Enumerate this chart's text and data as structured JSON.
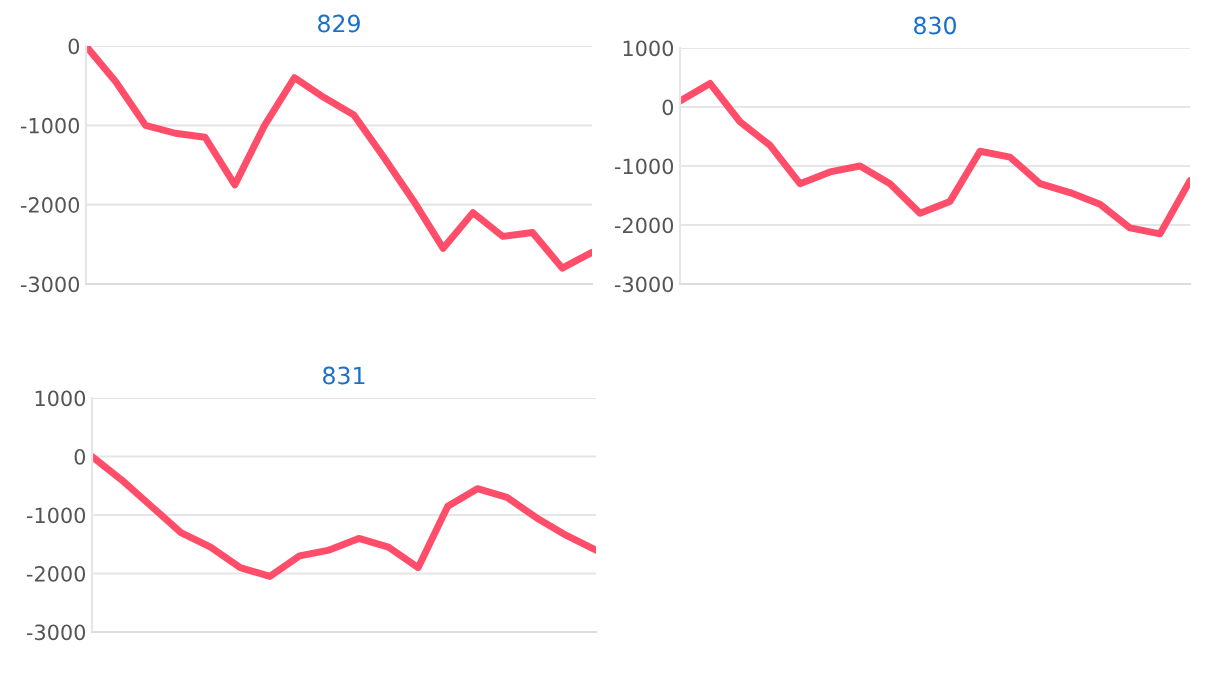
{
  "chart_data": [
    {
      "type": "line",
      "title": "829",
      "categories": [
        null,
        null,
        null,
        null,
        null,
        null,
        null,
        null,
        null,
        null,
        null,
        null,
        null,
        null,
        null,
        null,
        null,
        null
      ],
      "series": [
        {
          "color": "#ff4d6a",
          "values": [
            0,
            -450,
            -1000,
            -1100,
            -1150,
            -1750,
            -1000,
            -400,
            -650,
            -870,
            -1400,
            -1950,
            -2550,
            -2100,
            -2400,
            -2350,
            -2800,
            -2600
          ]
        }
      ],
      "ylim": [
        -3000,
        0
      ],
      "yticks": [
        -3000,
        -2000,
        -1000,
        0
      ],
      "grid": "y",
      "tick_labels": "y"
    },
    {
      "type": "line",
      "title": "830",
      "categories": [
        null,
        null,
        null,
        null,
        null,
        null,
        null,
        null,
        null,
        null,
        null,
        null,
        null,
        null,
        null,
        null,
        null,
        null
      ],
      "series": [
        {
          "color": "#ff4d6a",
          "values": [
            100,
            400,
            -250,
            -650,
            -1300,
            -1100,
            -1000,
            -1300,
            -1800,
            -1600,
            -750,
            -850,
            -1300,
            -1450,
            -1650,
            -2050,
            -2150,
            -1250
          ]
        }
      ],
      "ylim": [
        -3000,
        1000
      ],
      "yticks": [
        -3000,
        -2000,
        -1000,
        0,
        1000
      ],
      "grid": "y",
      "tick_labels": "y"
    },
    {
      "type": "line",
      "title": "831",
      "categories": [
        null,
        null,
        null,
        null,
        null,
        null,
        null,
        null,
        null,
        null,
        null,
        null,
        null,
        null,
        null,
        null,
        null,
        null
      ],
      "series": [
        {
          "color": "#ff4d6a",
          "values": [
            0,
            -400,
            -850,
            -1300,
            -1550,
            -1900,
            -2050,
            -1700,
            -1600,
            -1400,
            -1550,
            -1900,
            -850,
            -550,
            -700,
            -1050,
            -1350,
            -1600
          ]
        }
      ],
      "ylim": [
        -3000,
        1000
      ],
      "yticks": [
        -3000,
        -2000,
        -1000,
        0,
        1000
      ],
      "grid": "y",
      "tick_labels": "y"
    }
  ]
}
